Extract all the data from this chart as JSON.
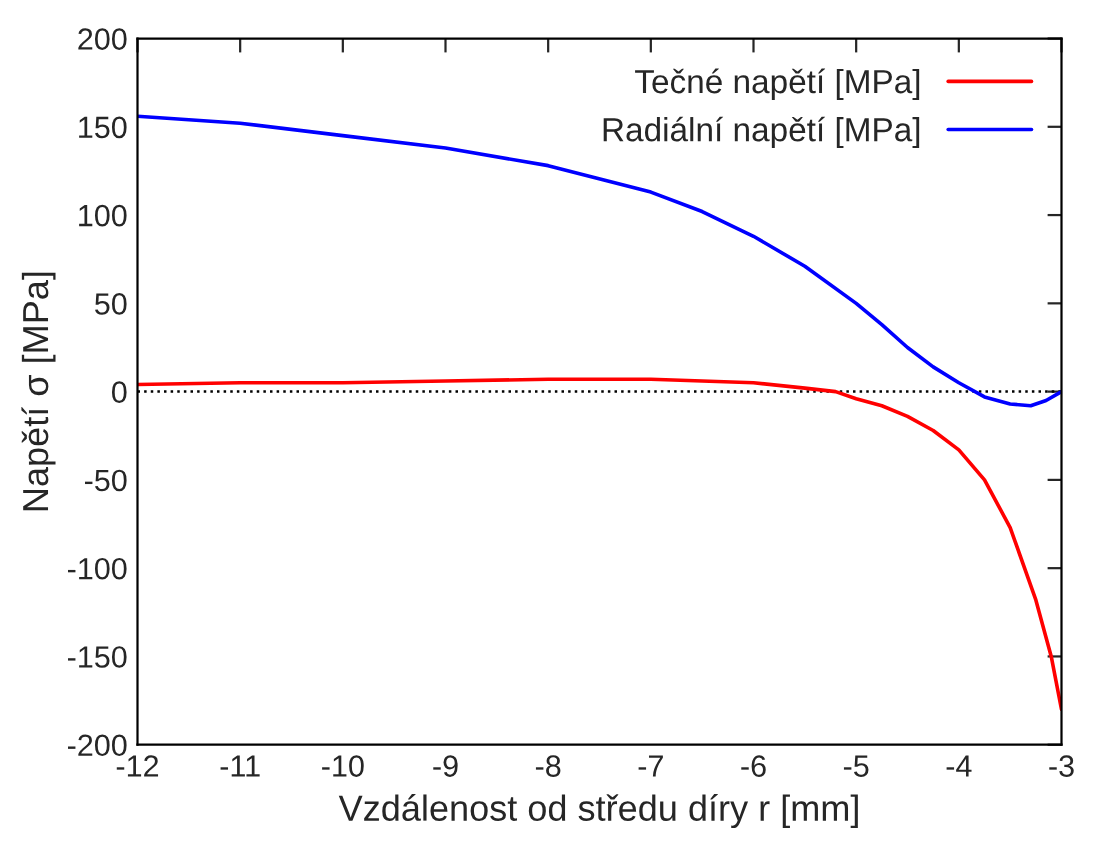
{
  "chart_data": {
    "type": "line",
    "xlabel": "Vzdálenost od středu díry r [mm]",
    "ylabel": "Napětí σ [MPa]",
    "xlim": [
      -12,
      -3
    ],
    "xticks": [
      -12,
      -11,
      -10,
      -9,
      -8,
      -7,
      -6,
      -5,
      -4,
      -3
    ],
    "ylim": [
      -200,
      200
    ],
    "yticks": [
      -200,
      -150,
      -100,
      -50,
      0,
      50,
      100,
      150,
      200
    ],
    "grid": false,
    "legend": "top right",
    "marker": "none",
    "line_style": "solid",
    "ref_lines": [
      {
        "axis": "y",
        "value": 0,
        "color": "#000000",
        "line_style": "dotted"
      }
    ],
    "series": [
      {
        "name": "Tečné napětí [MPa]",
        "color": "#ff0000",
        "x": [
          -12,
          -11,
          -10,
          -9,
          -8,
          -7,
          -6.5,
          -6,
          -5.5,
          -5.2,
          -5,
          -4.75,
          -4.5,
          -4.25,
          -4,
          -3.75,
          -3.5,
          -3.25,
          -3.1,
          -3
        ],
        "values": [
          4,
          5,
          5,
          6,
          7,
          7,
          6,
          5,
          2,
          0,
          -4,
          -8,
          -14,
          -22,
          -33,
          -50,
          -77,
          -118,
          -150,
          -180
        ]
      },
      {
        "name": "Radiální napětí [MPa]",
        "color": "#0000ff",
        "x": [
          -12,
          -11,
          -10,
          -9,
          -8,
          -7,
          -6.5,
          -6,
          -5.5,
          -5,
          -4.75,
          -4.5,
          -4.25,
          -4,
          -3.75,
          -3.5,
          -3.3,
          -3.15,
          -3
        ],
        "values": [
          156,
          152,
          145,
          138,
          128,
          113,
          102,
          88,
          71,
          50,
          38,
          25,
          14,
          5,
          -3,
          -7,
          -8,
          -5,
          0
        ]
      }
    ]
  }
}
